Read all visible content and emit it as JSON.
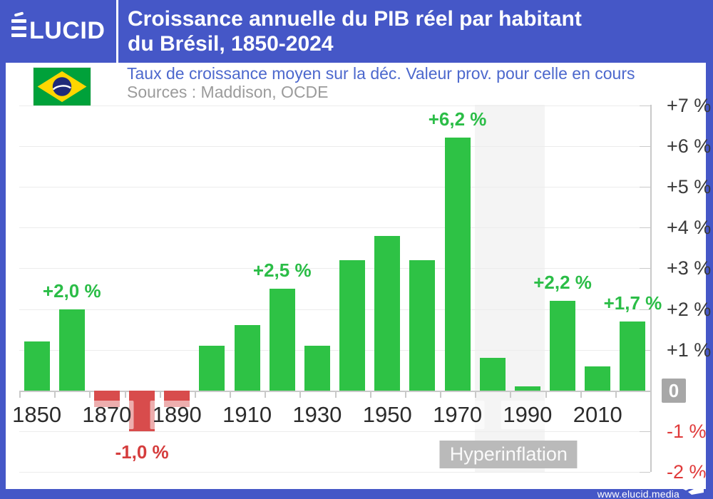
{
  "header": {
    "brand": "ÉLUCID",
    "brand_rest": "LUCID",
    "title_line1": "Croissance annuelle du PIB réel par habitant",
    "title_line2": "du Brésil, 1850-2024"
  },
  "subheader": {
    "subtitle": "Taux de croissance moyen sur la déc. Valeur prov. pour celle en cours",
    "sources": "Sources : Maddison, OCDE",
    "flag_icon": "brazil-flag"
  },
  "footer": {
    "site": "www.elucid.media",
    "icon": "paper-plane"
  },
  "colors": {
    "brand_blue": "#4557c7",
    "subtitle_blue": "#4c68cd",
    "sources_gray": "#9b9b9b",
    "axis_text": "#3a3a3a",
    "negative_axis_text": "#e03a3a",
    "year_text": "#2b2b2b"
  },
  "chart_data": {
    "type": "bar",
    "title": "Croissance annuelle du PIB réel par habitant du Brésil, 1850-2024",
    "subtitle": "Taux de croissance moyen sur la déc. Valeur prov. pour celle en cours",
    "sources": "Sources : Maddison, OCDE",
    "unit": "%",
    "categories": [
      "1850",
      "1860",
      "1870",
      "1880",
      "1890",
      "1900",
      "1910",
      "1920",
      "1930",
      "1940",
      "1950",
      "1960",
      "1970",
      "1980",
      "1990",
      "2000",
      "2010",
      "2020"
    ],
    "values": [
      1.2,
      2.0,
      -0.4,
      -1.0,
      -0.4,
      1.1,
      1.6,
      2.5,
      1.1,
      3.2,
      3.8,
      3.2,
      6.2,
      0.8,
      0.1,
      2.2,
      0.6,
      1.7
    ],
    "bar_labels": [
      {
        "category": "1860",
        "text": "+2,0 %"
      },
      {
        "category": "1880",
        "text": "-1,0 %"
      },
      {
        "category": "1920",
        "text": "+2,5 %"
      },
      {
        "category": "1970",
        "text": "+6,2 %"
      },
      {
        "category": "2000",
        "text": "+2,2 %"
      },
      {
        "category": "2020",
        "text": "+1,7 %"
      }
    ],
    "x_tick_labels": [
      "1850",
      "1870",
      "1890",
      "1910",
      "1930",
      "1950",
      "1970",
      "1990",
      "2010"
    ],
    "y_ticks": [
      {
        "v": 7,
        "label": "+7 %"
      },
      {
        "v": 6,
        "label": "+6 %"
      },
      {
        "v": 5,
        "label": "+5 %"
      },
      {
        "v": 4,
        "label": "+4 %"
      },
      {
        "v": 3,
        "label": "+3 %"
      },
      {
        "v": 2,
        "label": "+2 %"
      },
      {
        "v": 1,
        "label": "+1 %"
      },
      {
        "v": 0,
        "label": "0"
      },
      {
        "v": -1,
        "label": "-1 %"
      },
      {
        "v": -2,
        "label": "-2 %"
      }
    ],
    "ylim": [
      -2,
      7
    ],
    "grid": true,
    "legend": false,
    "annotation_band": {
      "label": "Hyperinflation",
      "from": "1980",
      "to": "1990"
    },
    "colors": {
      "positive": "#2ec245",
      "negative": "#d84c4c",
      "positive_label": "#2bbd47",
      "negative_label": "#d53d3d",
      "zero_badge": "#a7a7a7",
      "hyper_badge": "#bababa",
      "band": "#f4f4f4"
    }
  }
}
